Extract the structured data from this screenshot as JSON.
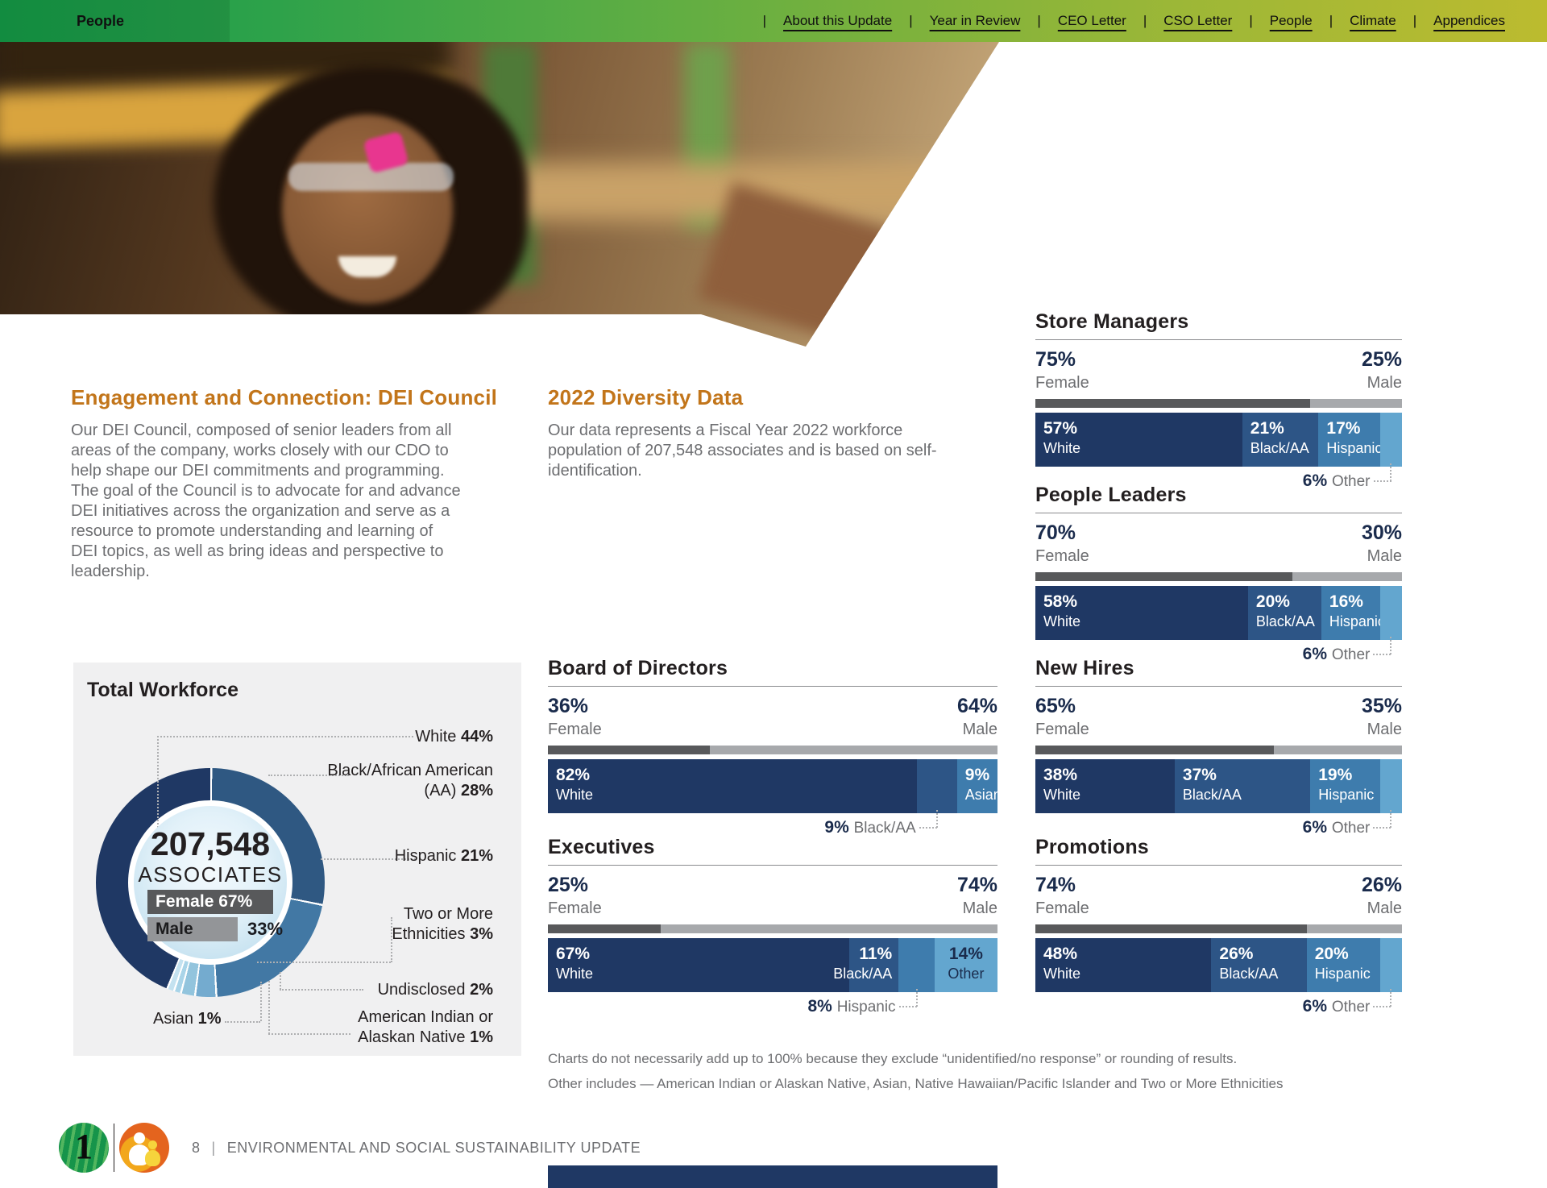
{
  "nav": {
    "section_label": "People",
    "links": [
      "About this Update",
      "Year in Review",
      "CEO Letter",
      "CSO Letter",
      "People",
      "Climate",
      "Appendices"
    ]
  },
  "articles": {
    "dei_council": {
      "title": "Engagement and Connection: DEI Council",
      "body": "Our DEI Council, composed of senior leaders from all areas of the company, works closely with our CDO to help shape our DEI commitments and programming. The goal of the Council is to advocate for and advance DEI initiatives across the organization and serve as a resource to promote understanding and learning of DEI topics, as well as bring ideas and perspective to leadership."
    },
    "diversity_data": {
      "title": "2022 Diversity Data",
      "body": "Our data represents a Fiscal Year 2022 workforce population of 207,548 associates and is based on self-identification."
    }
  },
  "chart_data": [
    {
      "type": "pie",
      "title": "Total Workforce",
      "center_value": "207,548",
      "center_label": "ASSOCIATES",
      "gender": [
        {
          "label": "Female",
          "value": 67
        },
        {
          "label": "Male",
          "value": 33
        }
      ],
      "segments": [
        {
          "label": "White",
          "value": 44,
          "color": "#1F3864"
        },
        {
          "label": "Black/African American (AA)",
          "value": 28,
          "color": "#2F5882"
        },
        {
          "label": "Hispanic",
          "value": 21,
          "color": "#4278A4"
        },
        {
          "label": "Two or More Ethnicities",
          "value": 3,
          "color": "#74ABCF"
        },
        {
          "label": "Undisclosed",
          "value": 2,
          "color": "#92C4DD"
        },
        {
          "label": "Asian",
          "value": 1,
          "color": "#A9D4E8"
        },
        {
          "label": "American Indian or Alaskan Native",
          "value": 1,
          "color": "#C4E2F0"
        }
      ]
    },
    {
      "type": "bar",
      "title": "Store Managers",
      "female_pct": 75,
      "female_label": "Female",
      "male_pct": 25,
      "male_label": "Male",
      "segments": [
        {
          "label": "White",
          "value": 57,
          "color": "#1F3864",
          "text": "light",
          "align": "left"
        },
        {
          "label": "Black/AA",
          "value": 21,
          "color": "#2D5586",
          "text": "light",
          "align": "left"
        },
        {
          "label": "Hispanic",
          "value": 17,
          "color": "#3E7CAD",
          "text": "light",
          "align": "left"
        },
        {
          "label": "Other",
          "value": 6,
          "color": "#63A6CF",
          "text": "none"
        }
      ],
      "callout": {
        "value": 6,
        "label": "Other",
        "segment": 3
      }
    },
    {
      "type": "bar",
      "title": "People Leaders",
      "female_pct": 70,
      "female_label": "Female",
      "male_pct": 30,
      "male_label": "Male",
      "segments": [
        {
          "label": "White",
          "value": 58,
          "color": "#1F3864",
          "text": "light",
          "align": "left"
        },
        {
          "label": "Black/AA",
          "value": 20,
          "color": "#2D5586",
          "text": "light",
          "align": "left"
        },
        {
          "label": "Hispanic",
          "value": 16,
          "color": "#3E7CAD",
          "text": "light",
          "align": "left"
        },
        {
          "label": "Other",
          "value": 6,
          "color": "#63A6CF",
          "text": "none"
        }
      ],
      "callout": {
        "value": 6,
        "label": "Other",
        "segment": 3
      }
    },
    {
      "type": "bar",
      "title": "Board of Directors",
      "female_pct": 36,
      "female_label": "Female",
      "male_pct": 64,
      "male_label": "Male",
      "segments": [
        {
          "label": "White",
          "value": 82,
          "color": "#1F3864",
          "text": "light",
          "align": "left"
        },
        {
          "label": "Black/AA",
          "value": 9,
          "color": "#2D5586",
          "text": "none"
        },
        {
          "label": "Asian",
          "value": 9,
          "color": "#3E7CAD",
          "text": "light",
          "align": "left"
        }
      ],
      "callout": {
        "value": 9,
        "label": "Black/AA",
        "segment": 1
      }
    },
    {
      "type": "bar",
      "title": "New Hires",
      "female_pct": 65,
      "female_label": "Female",
      "male_pct": 35,
      "male_label": "Male",
      "segments": [
        {
          "label": "White",
          "value": 38,
          "color": "#1F3864",
          "text": "light",
          "align": "left"
        },
        {
          "label": "Black/AA",
          "value": 37,
          "color": "#2D5586",
          "text": "light",
          "align": "left"
        },
        {
          "label": "Hispanic",
          "value": 19,
          "color": "#3E7CAD",
          "text": "light",
          "align": "left"
        },
        {
          "label": "Other",
          "value": 6,
          "color": "#63A6CF",
          "text": "none"
        }
      ],
      "callout": {
        "value": 6,
        "label": "Other",
        "segment": 3
      }
    },
    {
      "type": "bar",
      "title": "Executives",
      "female_pct": 25,
      "female_label": "Female",
      "male_pct": 74,
      "male_label": "Male",
      "segments": [
        {
          "label": "White",
          "value": 67,
          "color": "#1F3864",
          "text": "light",
          "align": "left"
        },
        {
          "label": "Black/AA",
          "value": 11,
          "color": "#2D5586",
          "text": "light",
          "align": "right"
        },
        {
          "label": "Hispanic",
          "value": 8,
          "color": "#3E7CAD",
          "text": "none"
        },
        {
          "label": "Other",
          "value": 14,
          "color": "#63A6CF",
          "text": "dark",
          "align": "center"
        }
      ],
      "callout": {
        "value": 8,
        "label": "Hispanic",
        "segment": 2
      }
    },
    {
      "type": "bar",
      "title": "Promotions",
      "female_pct": 74,
      "female_label": "Female",
      "male_pct": 26,
      "male_label": "Male",
      "segments": [
        {
          "label": "White",
          "value": 48,
          "color": "#1F3864",
          "text": "light",
          "align": "left"
        },
        {
          "label": "Black/AA",
          "value": 26,
          "color": "#2D5586",
          "text": "light",
          "align": "left"
        },
        {
          "label": "Hispanic",
          "value": 20,
          "color": "#3E7CAD",
          "text": "light",
          "align": "left"
        },
        {
          "label": "Other",
          "value": 6,
          "color": "#63A6CF",
          "text": "none"
        }
      ],
      "callout": {
        "value": 6,
        "label": "Other",
        "segment": 3
      }
    }
  ],
  "notes": [
    "Charts do not necessarily add up to 100% because they exclude “unidentified/no response” or rounding of results.",
    "Other includes — American Indian or Alaskan Native, Asian, Native Hawaiian/Pacific Islander and Two or More Ethnicities"
  ],
  "footer": {
    "page_number": "8",
    "separator": "|",
    "title": "Environmental and Social Sustainability Update",
    "logo_one": "1"
  },
  "colors": {
    "heading_orange": "#C2751A",
    "value_navy": "#1A2B4C",
    "bar_navy": "#1F3864",
    "female_gray": "#58595B",
    "male_gray": "#A7A9AC",
    "body_gray": "#6D6E71"
  }
}
